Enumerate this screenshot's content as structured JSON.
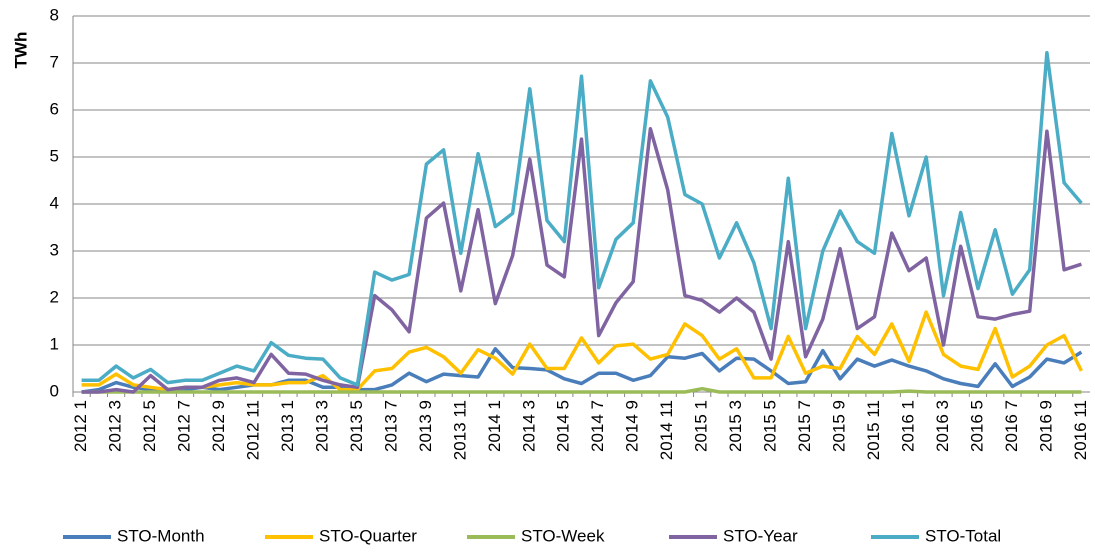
{
  "chart_data": {
    "type": "line",
    "y_label": "TWh",
    "categories": [
      "2012 1",
      null,
      "2012 3",
      null,
      "2012 5",
      null,
      "2012 7",
      null,
      "2012 9",
      null,
      "2012 11",
      null,
      "2013 1",
      null,
      "2013 3",
      null,
      "2013 5",
      null,
      "2013 7",
      null,
      "2013 9",
      null,
      "2013 11",
      null,
      "2014 1",
      null,
      "2014 3",
      null,
      "2014 5",
      null,
      "2014 7",
      null,
      "2014 9",
      null,
      "2014 11",
      null,
      "2015 1",
      null,
      "2015 3",
      null,
      "2015 5",
      null,
      "2015 7",
      null,
      "2015 9",
      null,
      "2015 11",
      null,
      "2016 1",
      null,
      "2016 3",
      null,
      "2016 5",
      null,
      "2016 7",
      null,
      "2016 9",
      null,
      "2016 11"
    ],
    "series": [
      {
        "name": "STO-Month",
        "color": "#4a7ebb",
        "values": [
          0,
          0.05,
          0.2,
          0.1,
          0.05,
          0.05,
          0.05,
          0.1,
          0.05,
          0.1,
          0.15,
          0.15,
          0.25,
          0.25,
          0.1,
          0.1,
          0.05,
          0.05,
          0.15,
          0.4,
          0.22,
          0.38,
          0.35,
          0.32,
          0.92,
          0.52,
          0.5,
          0.47,
          0.28,
          0.18,
          0.4,
          0.4,
          0.25,
          0.35,
          0.75,
          0.72,
          0.82,
          0.45,
          0.72,
          0.7,
          0.45,
          0.18,
          0.22,
          0.88,
          0.28,
          0.7,
          0.55,
          0.68,
          0.55,
          0.45,
          0.28,
          0.18,
          0.12,
          0.6,
          0.12,
          0.32,
          0.7,
          0.62,
          0.85
        ]
      },
      {
        "name": "STO-Quarter",
        "color": "#ffc000",
        "values": [
          0.15,
          0.15,
          0.38,
          0.15,
          0.1,
          0.05,
          0.1,
          0.1,
          0.15,
          0.2,
          0.15,
          0.15,
          0.2,
          0.2,
          0.35,
          0.05,
          0.05,
          0.45,
          0.5,
          0.85,
          0.95,
          0.75,
          0.4,
          0.9,
          0.72,
          0.38,
          1.02,
          0.5,
          0.5,
          1.15,
          0.62,
          0.98,
          1.02,
          0.7,
          0.8,
          1.45,
          1.2,
          0.7,
          0.92,
          0.3,
          0.3,
          1.18,
          0.4,
          0.55,
          0.5,
          1.18,
          0.8,
          1.45,
          0.65,
          1.7,
          0.8,
          0.55,
          0.48,
          1.35,
          0.32,
          0.55,
          1.0,
          1.2,
          0.45
        ]
      },
      {
        "name": "STO-Week",
        "color": "#9bbb59",
        "values": [
          0,
          0,
          0,
          0,
          0,
          0,
          0,
          0,
          0,
          0,
          0,
          0,
          0,
          0,
          0,
          0,
          0,
          0,
          0,
          0,
          0,
          0,
          0,
          0,
          0,
          0,
          0,
          0,
          0,
          0,
          0,
          0,
          0,
          0,
          0,
          0,
          0.07,
          0,
          0,
          0,
          0,
          0,
          0,
          0,
          0,
          0,
          0,
          0,
          0.02,
          0,
          0,
          0,
          0,
          0,
          0,
          0,
          0,
          0,
          0
        ]
      },
      {
        "name": "STO-Year",
        "color": "#8064a2",
        "values": [
          0,
          0,
          0.05,
          0,
          0.35,
          0.05,
          0.1,
          0.1,
          0.25,
          0.3,
          0.2,
          0.8,
          0.4,
          0.38,
          0.25,
          0.15,
          0.1,
          2.05,
          1.75,
          1.28,
          3.7,
          4.02,
          2.15,
          3.88,
          1.88,
          2.9,
          4.95,
          2.7,
          2.45,
          5.38,
          1.2,
          1.9,
          2.35,
          5.6,
          4.3,
          2.05,
          1.95,
          1.7,
          2.0,
          1.7,
          0.7,
          3.2,
          0.75,
          1.55,
          3.05,
          1.35,
          1.6,
          3.38,
          2.58,
          2.85,
          1.0,
          3.1,
          1.6,
          1.55,
          1.65,
          1.72,
          5.55,
          2.6,
          2.72
        ]
      },
      {
        "name": "STO-Total",
        "color": "#4bacc6",
        "values": [
          0.25,
          0.25,
          0.55,
          0.3,
          0.48,
          0.2,
          0.25,
          0.25,
          0.4,
          0.55,
          0.45,
          1.05,
          0.78,
          0.72,
          0.7,
          0.3,
          0.15,
          2.55,
          2.38,
          2.5,
          4.85,
          5.15,
          2.95,
          5.07,
          3.52,
          3.8,
          6.45,
          3.65,
          3.2,
          6.72,
          2.22,
          3.25,
          3.6,
          6.62,
          5.85,
          4.2,
          4.0,
          2.85,
          3.6,
          2.75,
          1.35,
          4.55,
          1.35,
          3.0,
          3.85,
          3.2,
          2.95,
          5.5,
          3.75,
          5.0,
          2.05,
          3.82,
          2.2,
          3.45,
          2.08,
          2.6,
          7.22,
          4.45,
          4.02
        ]
      }
    ],
    "ylim": [
      0,
      8
    ],
    "yticks": [
      0,
      1,
      2,
      3,
      4,
      5,
      6,
      7,
      8
    ],
    "grid": true,
    "legend": "bottom"
  }
}
